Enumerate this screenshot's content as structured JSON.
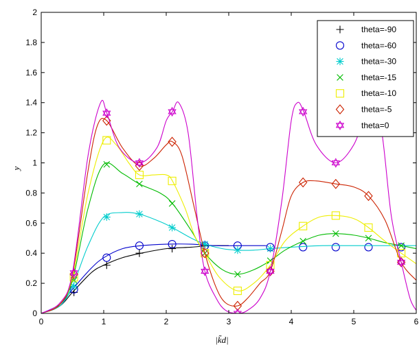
{
  "chart_data": {
    "type": "line",
    "title": "",
    "xlabel": "|k̃d|",
    "ylabel": "y",
    "xlim": [
      0,
      6
    ],
    "ylim": [
      0,
      2
    ],
    "xticks": [
      0,
      1,
      2,
      3,
      4,
      5,
      6
    ],
    "yticks": [
      0,
      0.2,
      0.4,
      0.6,
      0.8,
      1,
      1.2,
      1.4,
      1.6,
      1.8,
      2
    ],
    "grid": false,
    "legend_position": "top-right",
    "marker_x": [
      0.5236,
      1.0472,
      1.5708,
      2.0944,
      2.618,
      3.1416,
      3.6652,
      4.1888,
      4.7124,
      5.236,
      5.7596
    ],
    "series": [
      {
        "name": "theta=-90",
        "color": "#000000",
        "marker": "plus",
        "x": [
          0,
          0.3,
          0.5,
          0.8,
          1.0,
          1.3,
          1.6,
          2.0,
          2.4,
          2.7,
          3.0
        ],
        "y": [
          0,
          0.05,
          0.14,
          0.27,
          0.32,
          0.37,
          0.4,
          0.43,
          0.44,
          0.45,
          0.45
        ],
        "marker_y": [
          0.14,
          0.32,
          0.4,
          0.43,
          0.45
        ]
      },
      {
        "name": "theta=-60",
        "color": "#0000cc",
        "marker": "circle",
        "x": [
          0,
          0.3,
          0.5,
          0.8,
          1.0,
          1.3,
          1.6,
          2.0,
          2.4,
          2.8,
          3.2,
          3.6
        ],
        "y": [
          0,
          0.06,
          0.16,
          0.3,
          0.37,
          0.43,
          0.45,
          0.46,
          0.46,
          0.45,
          0.45,
          0.45
        ],
        "marker_y": [
          0.16,
          0.37,
          0.45,
          0.46,
          0.45,
          0.45,
          0.44,
          0.44,
          0.44,
          0.44,
          0.44
        ]
      },
      {
        "name": "theta=-30",
        "color": "#00cccc",
        "marker": "asterisk",
        "x": [
          0,
          0.3,
          0.5,
          0.75,
          1.0,
          1.3,
          1.57,
          1.9,
          2.1,
          2.4,
          2.618,
          2.9,
          3.1416,
          3.4,
          3.6652,
          4.0,
          4.5,
          5.0,
          5.5,
          6.0
        ],
        "y": [
          0,
          0.05,
          0.18,
          0.45,
          0.64,
          0.67,
          0.66,
          0.61,
          0.57,
          0.5,
          0.46,
          0.43,
          0.42,
          0.42,
          0.43,
          0.44,
          0.45,
          0.45,
          0.45,
          0.45
        ],
        "marker_y": [
          0.18,
          0.64,
          0.66,
          0.57,
          0.46,
          0.42,
          0.43
        ]
      },
      {
        "name": "theta=-15",
        "color": "#00bb00",
        "marker": "cross",
        "x": [
          0,
          0.3,
          0.5,
          0.75,
          1.0,
          1.3,
          1.57,
          1.9,
          2.1,
          2.4,
          2.618,
          2.9,
          3.1416,
          3.4,
          3.6652,
          3.9,
          4.1888,
          4.45,
          4.7124,
          5.0,
          5.236,
          5.5,
          5.7596,
          6.0
        ],
        "y": [
          0,
          0.06,
          0.22,
          0.7,
          0.99,
          0.93,
          0.86,
          0.8,
          0.73,
          0.55,
          0.4,
          0.29,
          0.26,
          0.29,
          0.35,
          0.42,
          0.48,
          0.52,
          0.53,
          0.52,
          0.5,
          0.47,
          0.45,
          0.43
        ],
        "marker_y": [
          0.22,
          0.99,
          0.86,
          0.73,
          0.4,
          0.26,
          0.35,
          0.48,
          0.53,
          0.5,
          0.45
        ]
      },
      {
        "name": "theta=-10",
        "color": "#eeee00",
        "marker": "square",
        "x": [
          0,
          0.3,
          0.5,
          0.75,
          1.0,
          1.2,
          1.4,
          1.57,
          1.8,
          2.0,
          2.1,
          2.3,
          2.45,
          2.618,
          2.85,
          3.1416,
          3.4,
          3.6652,
          3.9,
          4.1888,
          4.45,
          4.7124,
          5.0,
          5.236,
          5.5,
          5.7596,
          6.0
        ],
        "y": [
          0,
          0.06,
          0.24,
          0.8,
          1.15,
          1.12,
          1.0,
          0.92,
          0.92,
          0.92,
          0.88,
          0.7,
          0.52,
          0.4,
          0.24,
          0.15,
          0.2,
          0.32,
          0.48,
          0.58,
          0.64,
          0.65,
          0.63,
          0.57,
          0.48,
          0.4,
          0.33
        ],
        "marker_y": [
          0.24,
          1.15,
          0.92,
          0.88,
          0.4,
          0.15,
          0.32,
          0.58,
          0.65,
          0.57,
          0.4
        ]
      },
      {
        "name": "theta=-5",
        "color": "#cc2200",
        "marker": "diamond",
        "x": [
          0,
          0.3,
          0.5,
          0.75,
          0.9,
          1.05,
          1.3,
          1.57,
          1.8,
          2.0,
          2.1,
          2.25,
          2.45,
          2.618,
          2.8,
          2.95,
          3.1416,
          3.3,
          3.5,
          3.6652,
          3.85,
          4.0,
          4.1888,
          4.4,
          4.7124,
          5.0,
          5.236,
          5.5,
          5.7596,
          6.0
        ],
        "y": [
          0,
          0.06,
          0.26,
          0.95,
          1.25,
          1.28,
          1.1,
          0.98,
          1.03,
          1.12,
          1.14,
          1.05,
          0.7,
          0.4,
          0.17,
          0.07,
          0.05,
          0.1,
          0.2,
          0.28,
          0.55,
          0.78,
          0.87,
          0.88,
          0.86,
          0.84,
          0.78,
          0.62,
          0.34,
          0.22
        ],
        "marker_y": [
          0.26,
          1.28,
          0.98,
          1.14,
          0.4,
          0.05,
          0.28,
          0.87,
          0.86,
          0.78,
          0.34
        ]
      },
      {
        "name": "theta=0",
        "color": "#cc00cc",
        "marker": "hexagram",
        "x": [
          0,
          0.3,
          0.5,
          0.75,
          0.95,
          1.05,
          1.25,
          1.57,
          1.85,
          2.0,
          2.1,
          2.2,
          2.35,
          2.5,
          2.618,
          2.8,
          2.95,
          3.1416,
          3.3,
          3.5,
          3.6652,
          3.85,
          4.0,
          4.1,
          4.2,
          4.4,
          4.7124,
          5.0,
          5.2,
          5.3,
          5.45,
          5.6,
          5.7596,
          5.9,
          6.0
        ],
        "y": [
          0,
          0.07,
          0.27,
          1.05,
          1.4,
          1.33,
          1.1,
          1.0,
          1.1,
          1.28,
          1.34,
          1.4,
          1.2,
          0.62,
          0.28,
          0.1,
          0.02,
          0.0,
          0.02,
          0.1,
          0.28,
          0.75,
          1.28,
          1.4,
          1.34,
          1.12,
          1.0,
          1.12,
          1.34,
          1.4,
          1.2,
          0.65,
          0.34,
          0.1,
          0.02
        ],
        "marker_y": [
          0.27,
          1.33,
          1.0,
          1.34,
          0.28,
          0.0,
          0.28,
          1.34,
          1.0,
          1.34,
          0.34
        ]
      }
    ]
  }
}
